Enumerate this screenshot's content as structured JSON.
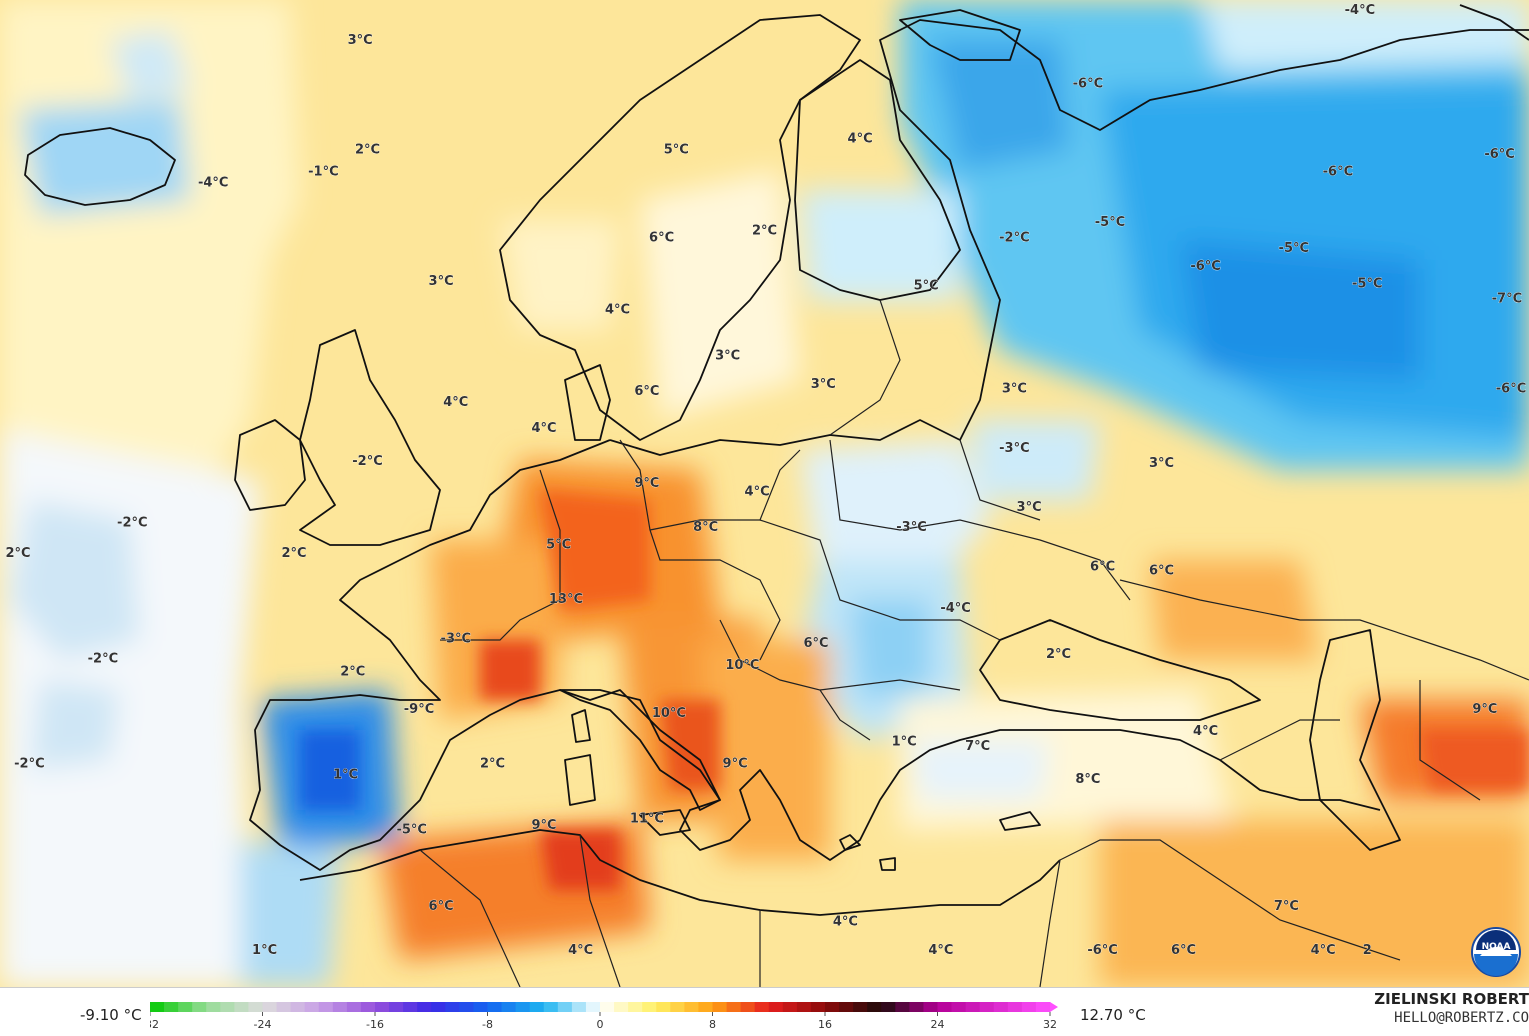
{
  "map": {
    "temperature_labels": [
      {
        "text": "3°C",
        "lon": -9.5,
        "lat": 71.0
      },
      {
        "text": "2°C",
        "lon": -9.0,
        "lat": 66.0
      },
      {
        "text": "-4°C",
        "lon": -19.5,
        "lat": 64.5
      },
      {
        "text": "-1°C",
        "lon": -12.0,
        "lat": 65.0
      },
      {
        "text": "5°C",
        "lon": 12.0,
        "lat": 66.0
      },
      {
        "text": "4°C",
        "lon": 24.5,
        "lat": 66.5
      },
      {
        "text": "-6°C",
        "lon": 40.0,
        "lat": 69.0
      },
      {
        "text": "-4°C",
        "lon": 58.5,
        "lat": 73.5
      },
      {
        "text": "6°C",
        "lon": 11.0,
        "lat": 62.0
      },
      {
        "text": "2°C",
        "lon": 18.0,
        "lat": 62.3
      },
      {
        "text": "-2°C",
        "lon": 35.0,
        "lat": 62.0
      },
      {
        "text": "-5°C",
        "lon": 41.5,
        "lat": 62.7
      },
      {
        "text": "-5°C",
        "lon": 54.0,
        "lat": 61.5
      },
      {
        "text": "-6°C",
        "lon": 57.0,
        "lat": 65.0
      },
      {
        "text": "-6°C",
        "lon": 68.0,
        "lat": 65.8
      },
      {
        "text": "3°C",
        "lon": -4.0,
        "lat": 60.0
      },
      {
        "text": "4°C",
        "lon": 8.0,
        "lat": 58.7
      },
      {
        "text": "5°C",
        "lon": 29.0,
        "lat": 59.8
      },
      {
        "text": "-6°C",
        "lon": 48.0,
        "lat": 60.7
      },
      {
        "text": "-5°C",
        "lon": 59.0,
        "lat": 59.9
      },
      {
        "text": "-7°C",
        "lon": 68.5,
        "lat": 59.2
      },
      {
        "text": "3°C",
        "lon": 15.5,
        "lat": 56.6
      },
      {
        "text": "6°C",
        "lon": 10.0,
        "lat": 55.0
      },
      {
        "text": "3°C",
        "lon": 22.0,
        "lat": 55.3
      },
      {
        "text": "3°C",
        "lon": 35.0,
        "lat": 55.1
      },
      {
        "text": "-6°C",
        "lon": 70.0,
        "lat": 55.1
      },
      {
        "text": "4°C",
        "lon": -3.0,
        "lat": 54.5
      },
      {
        "text": "4°C",
        "lon": 3.0,
        "lat": 53.3
      },
      {
        "text": "-3°C",
        "lon": 35.0,
        "lat": 52.4
      },
      {
        "text": "3°C",
        "lon": 45.0,
        "lat": 51.7
      },
      {
        "text": "-2°C",
        "lon": -9.0,
        "lat": 51.8
      },
      {
        "text": "9°C",
        "lon": 10.0,
        "lat": 50.8
      },
      {
        "text": "4°C",
        "lon": 17.5,
        "lat": 50.4
      },
      {
        "text": "3°C",
        "lon": 36.0,
        "lat": 49.7
      },
      {
        "text": "-2°C",
        "lon": -25.0,
        "lat": 49.0
      },
      {
        "text": "8°C",
        "lon": 14.0,
        "lat": 48.8
      },
      {
        "text": "-3°C",
        "lon": 28.0,
        "lat": 48.8
      },
      {
        "text": "2°C",
        "lon": -34.0,
        "lat": 47.6
      },
      {
        "text": "2°C",
        "lon": -14.0,
        "lat": 47.6
      },
      {
        "text": "5°C",
        "lon": 4.0,
        "lat": 48.0
      },
      {
        "text": "6°C",
        "lon": 41.0,
        "lat": 47.0
      },
      {
        "text": "6°C",
        "lon": 45.0,
        "lat": 46.8
      },
      {
        "text": "13°C",
        "lon": 4.5,
        "lat": 45.5
      },
      {
        "text": "-4°C",
        "lon": 31.0,
        "lat": 45.1
      },
      {
        "text": "-3°C",
        "lon": -3.0,
        "lat": 43.7
      },
      {
        "text": "6°C",
        "lon": 21.5,
        "lat": 43.5
      },
      {
        "text": "2°C",
        "lon": 38.0,
        "lat": 43.0
      },
      {
        "text": "-2°C",
        "lon": -27.0,
        "lat": 42.8
      },
      {
        "text": "2°C",
        "lon": -10.0,
        "lat": 42.2
      },
      {
        "text": "10°C",
        "lon": 16.5,
        "lat": 42.5
      },
      {
        "text": "-9°C",
        "lon": -5.5,
        "lat": 40.5
      },
      {
        "text": "10°C",
        "lon": 11.5,
        "lat": 40.3
      },
      {
        "text": "9°C",
        "lon": 67.0,
        "lat": 40.5
      },
      {
        "text": "4°C",
        "lon": 48.0,
        "lat": 39.5
      },
      {
        "text": "1°C",
        "lon": 27.5,
        "lat": 39.0
      },
      {
        "text": "7°C",
        "lon": 32.5,
        "lat": 38.8
      },
      {
        "text": "-2°C",
        "lon": -32.0,
        "lat": 38.0
      },
      {
        "text": "2°C",
        "lon": -0.5,
        "lat": 38.0
      },
      {
        "text": "9°C",
        "lon": 16.0,
        "lat": 38.0
      },
      {
        "text": "1°C",
        "lon": -10.5,
        "lat": 37.5
      },
      {
        "text": "8°C",
        "lon": 40.0,
        "lat": 37.3
      },
      {
        "text": "11°C",
        "lon": 10.0,
        "lat": 35.5
      },
      {
        "text": "9°C",
        "lon": 3.0,
        "lat": 35.2
      },
      {
        "text": "-5°C",
        "lon": -6.0,
        "lat": 35.0
      },
      {
        "text": "6°C",
        "lon": -4.0,
        "lat": 31.5
      },
      {
        "text": "7°C",
        "lon": 53.5,
        "lat": 31.5
      },
      {
        "text": "4°C",
        "lon": 23.5,
        "lat": 30.8
      },
      {
        "text": "1°C",
        "lon": -16.0,
        "lat": 29.5
      },
      {
        "text": "4°C",
        "lon": 5.5,
        "lat": 29.5
      },
      {
        "text": "4°C",
        "lon": 30.0,
        "lat": 29.5
      },
      {
        "text": "-6°C",
        "lon": 41.0,
        "lat": 29.5
      },
      {
        "text": "6°C",
        "lon": 46.5,
        "lat": 29.5
      },
      {
        "text": "4°C",
        "lon": 56.0,
        "lat": 29.5
      },
      {
        "text": "2",
        "lon": 59.0,
        "lat": 29.5
      }
    ]
  },
  "legend": {
    "min_label": "-9.10 °C",
    "max_label": "12.70 °C",
    "scale_min": -32,
    "scale_max": 32,
    "ticks": [
      "-32",
      "-24",
      "-16",
      "-8",
      "0",
      "8",
      "16",
      "24",
      "32"
    ],
    "tick_values": [
      -32,
      -24,
      -16,
      -8,
      0,
      8,
      16,
      24,
      32
    ],
    "color_stops": [
      {
        "value": -32,
        "color": "#00c800"
      },
      {
        "value": -28,
        "color": "#96dc96"
      },
      {
        "value": -24,
        "color": "#dcdcdc"
      },
      {
        "value": -20,
        "color": "#c8a0e6"
      },
      {
        "value": -16,
        "color": "#9650dc"
      },
      {
        "value": -12,
        "color": "#3c28e6"
      },
      {
        "value": -8,
        "color": "#1464f0"
      },
      {
        "value": -4,
        "color": "#1eb4f0"
      },
      {
        "value": 0,
        "color": "#ffffff"
      },
      {
        "value": 4,
        "color": "#fff064"
      },
      {
        "value": 8,
        "color": "#ffa014"
      },
      {
        "value": 12,
        "color": "#e61e1e"
      },
      {
        "value": 16,
        "color": "#8c0a0a"
      },
      {
        "value": 20,
        "color": "#1e0a0a"
      },
      {
        "value": 24,
        "color": "#b40096"
      },
      {
        "value": 32,
        "color": "#ff50ff"
      }
    ]
  },
  "credit": {
    "name": "ZIELINSKI ROBERT",
    "email": "HELLO@ROBERTZ.CO"
  },
  "logo": {
    "text": "NOAA"
  }
}
